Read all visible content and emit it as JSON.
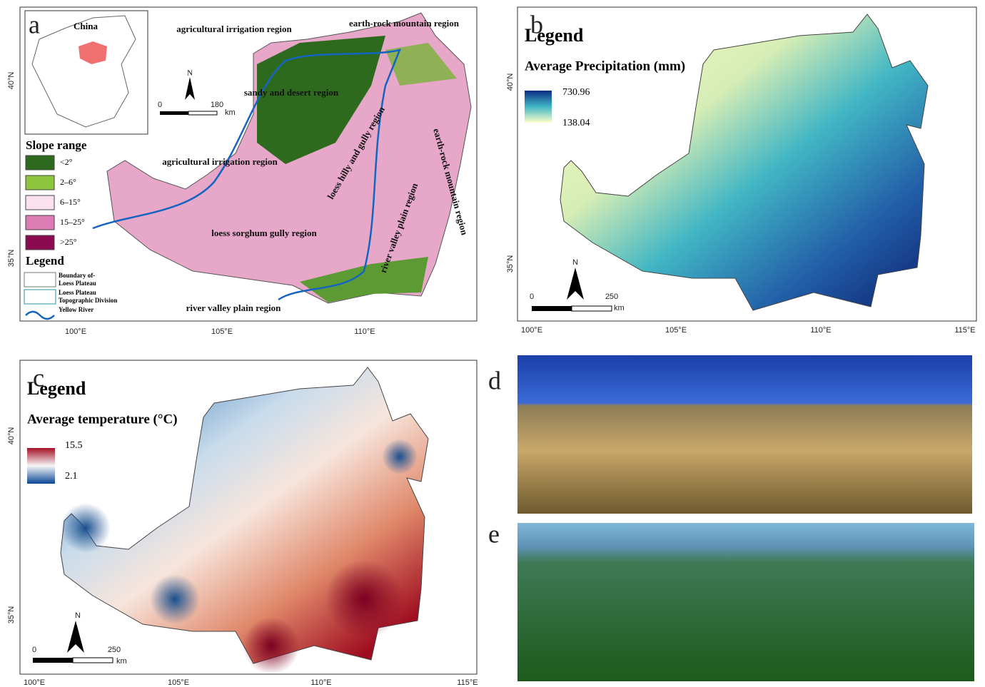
{
  "panels": {
    "a": {
      "label": "a",
      "inset_title": "China",
      "regions": [
        "agricultural irrigation region",
        "earth-rock mountain region",
        "sandy and desert region",
        "loess hilly and gully region",
        "agricultural irrigation region",
        "earth-rock mountain region",
        "loess sorghum gully region",
        "river valley plain region",
        "river valley plain region"
      ],
      "north": "N",
      "scale": [
        "0",
        "180"
      ],
      "unit": "km",
      "slope_title": "Slope range",
      "slope_classes": [
        {
          "label": "<2°",
          "color": "#2d6a1e"
        },
        {
          "label": "2–6°",
          "color": "#8cc43c"
        },
        {
          "label": "6–15°",
          "color": "#fbe0ee"
        },
        {
          "label": "15–25°",
          "color": "#dd7bb5"
        },
        {
          "label": ">25°",
          "color": "#8c0a4f"
        }
      ],
      "legend_title": "Legend",
      "legend_items": [
        [
          "Boundary of-",
          "Loess Plateau"
        ],
        [
          "Loess Plateau",
          "Topographic Division"
        ],
        [
          "Yellow River"
        ]
      ],
      "lat_ticks": [
        "40°N",
        "35°N"
      ],
      "lon_ticks": [
        "100°E",
        "105°E",
        "110°E"
      ]
    },
    "b": {
      "label": "b",
      "legend_title": "Legend",
      "title": "Average Precipitation (mm)",
      "max": "730.96",
      "min": "138.04",
      "north": "N",
      "scale": [
        "0",
        "250"
      ],
      "unit": "km",
      "lat_ticks": [
        "40°N",
        "35°N"
      ],
      "lon_ticks": [
        "100°E",
        "105°E",
        "110°E",
        "115°E"
      ]
    },
    "c": {
      "label": "c",
      "legend_title": "Legend",
      "title": "Average temperature (°C)",
      "max": "15.5",
      "min": "2.1",
      "north": "N",
      "scale": [
        "0",
        "250"
      ],
      "unit": "km",
      "lat_ticks": [
        "40°N",
        "35°N"
      ],
      "lon_ticks": [
        "100°E",
        "105°E",
        "110°E",
        "115°E"
      ]
    },
    "d": {
      "label": "d"
    },
    "e": {
      "label": "e"
    }
  }
}
